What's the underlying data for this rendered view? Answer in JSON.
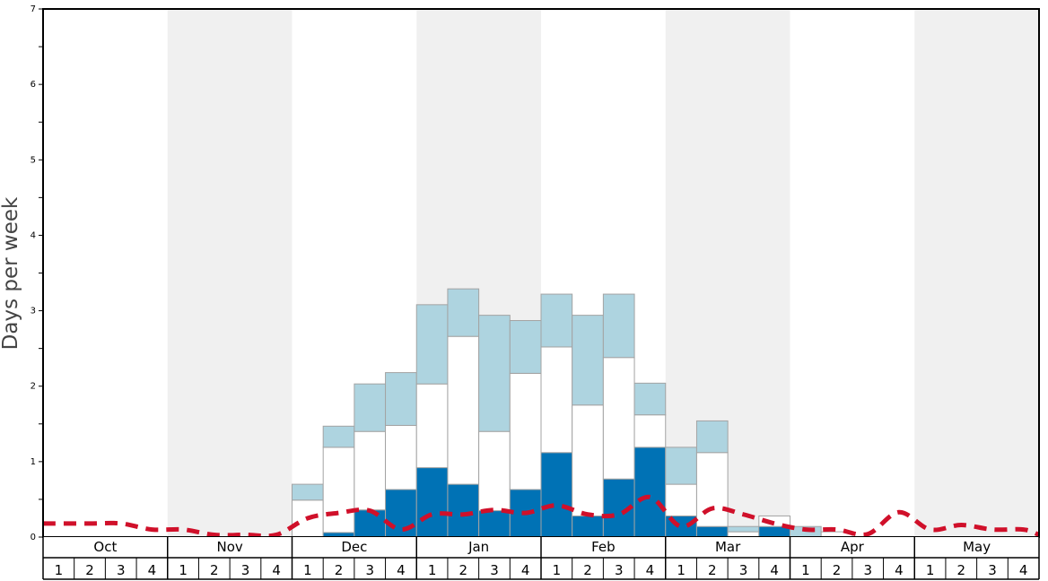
{
  "chart_data": {
    "type": "bar",
    "xlabel": "",
    "ylabel": "Days per week",
    "ylim": [
      0,
      7
    ],
    "y_ticks": [
      "0",
      "1",
      "2",
      "3",
      "4",
      "5",
      "6",
      "7"
    ],
    "months": [
      "Oct",
      "Nov",
      "Dec",
      "Jan",
      "Feb",
      "Mar",
      "Apr",
      "May"
    ],
    "week_labels": [
      "1",
      "2",
      "3",
      "4"
    ],
    "stacked": true,
    "colors": {
      "dark_blue": "#0072b5",
      "white_band": "#ffffff",
      "light_blue": "#aed4e0",
      "dashed_line": "#d0102a",
      "band_shade": "#f0f0f0",
      "bar_border": "#a3a3a3"
    },
    "series": [
      {
        "values": [
          0,
          0,
          0,
          0,
          0,
          0,
          0,
          0,
          0,
          0.06,
          0.36,
          0.63,
          0.92,
          0.7,
          0.35,
          0.63,
          1.12,
          0.28,
          0.77,
          1.19,
          0.28,
          0.14,
          0,
          0.14,
          0,
          0,
          0,
          0,
          0,
          0,
          0,
          0
        ]
      },
      {
        "values": [
          0,
          0,
          0,
          0,
          0,
          0,
          0,
          0,
          0.49,
          1.13,
          1.04,
          0.85,
          1.11,
          1.96,
          1.05,
          1.54,
          1.4,
          1.47,
          1.61,
          0.43,
          0.42,
          0.98,
          0.07,
          0.14,
          0,
          0.07,
          0,
          0,
          0,
          0,
          0,
          0
        ]
      },
      {
        "values": [
          0,
          0,
          0,
          0,
          0,
          0,
          0,
          0,
          0.21,
          0.28,
          0.63,
          0.7,
          1.05,
          0.63,
          1.54,
          0.7,
          0.7,
          1.19,
          0.84,
          0.42,
          0.49,
          0.42,
          0.07,
          0,
          0.14,
          0,
          0,
          0,
          0,
          0,
          0,
          0
        ]
      },
      {
        "values": [
          0.18,
          0.18,
          0.18,
          0.1,
          0.1,
          0.03,
          0.03,
          0.03,
          0.25,
          0.32,
          0.35,
          0.1,
          0.3,
          0.3,
          0.36,
          0.32,
          0.42,
          0.3,
          0.3,
          0.53,
          0.14,
          0.38,
          0.3,
          0.18,
          0.1,
          0.1,
          0.04,
          0.33,
          0.1,
          0.16,
          0.1,
          0.1
        ]
      }
    ]
  }
}
